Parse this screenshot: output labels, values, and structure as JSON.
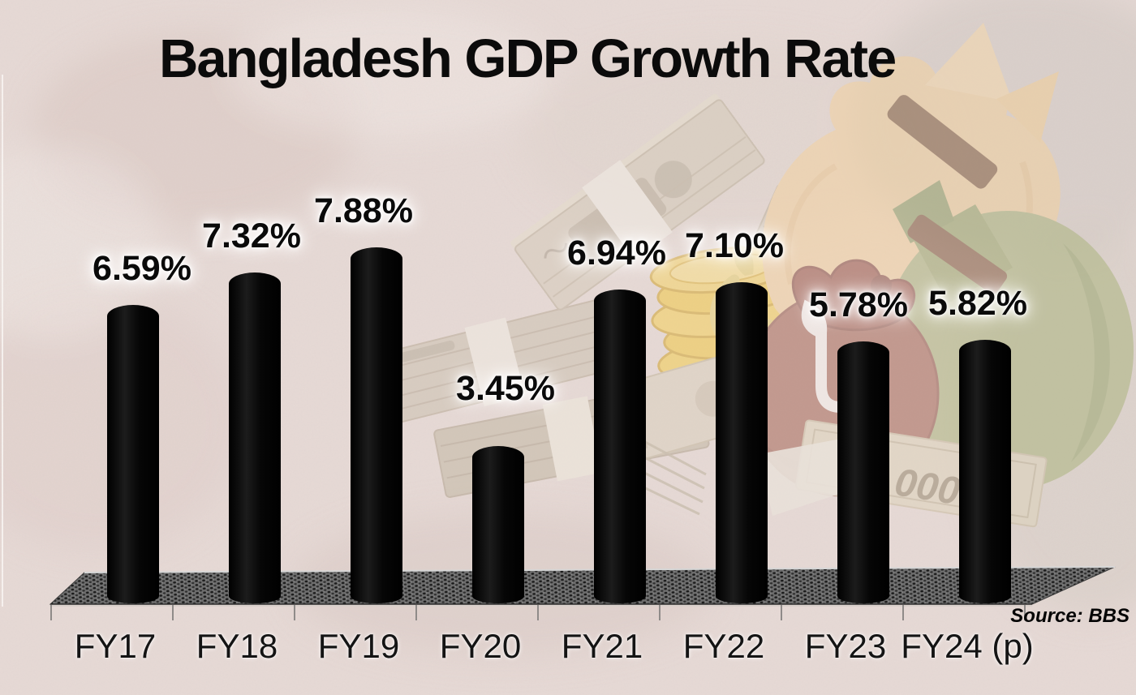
{
  "title": "Bangladesh GDP Growth Rate",
  "source_note": "Source: BBS",
  "chart_data": {
    "type": "bar",
    "title": "Bangladesh GDP Growth Rate",
    "categories": [
      "FY17",
      "FY18",
      "FY19",
      "FY20",
      "FY21",
      "FY22",
      "FY23",
      "FY24 (p)"
    ],
    "values": [
      6.59,
      7.32,
      7.88,
      3.45,
      6.94,
      7.1,
      5.78,
      5.82
    ],
    "value_labels": [
      "6.59%",
      "7.32%",
      "7.88%",
      "3.45%",
      "6.94%",
      "7.10%",
      "5.78%",
      "5.82%"
    ],
    "unit": "percent",
    "xlabel": "",
    "ylabel": "",
    "ylim": [
      0,
      8.5
    ],
    "grid": false,
    "legend": false,
    "bar_style": "black 3d cylinder on dark dotted 3d floor",
    "bar_color": "#0a0a0a",
    "source": "Source: BBS"
  },
  "style": {
    "background_color": "#e7dad6",
    "platform_color": "#6e6e6e",
    "label_color": "#0a0a0a",
    "label_halo": "#ffffff",
    "coin_color": "#f2c636",
    "sack_tan_color": "#f5d09b",
    "bag_green_color": "#a6b077",
    "bag_red_color": "#9e5a4a"
  },
  "art": {
    "description": "faded watercolor money illustration",
    "elements": [
      "banknote-bundle-icon",
      "banknote-stack-icon",
      "coin-stack-icon",
      "money-sack-icon",
      "tied-money-bag-green-icon",
      "tied-money-bag-red-icon",
      "banknote-icon"
    ],
    "taka_symbol": "৳",
    "banknote_text": "000"
  }
}
